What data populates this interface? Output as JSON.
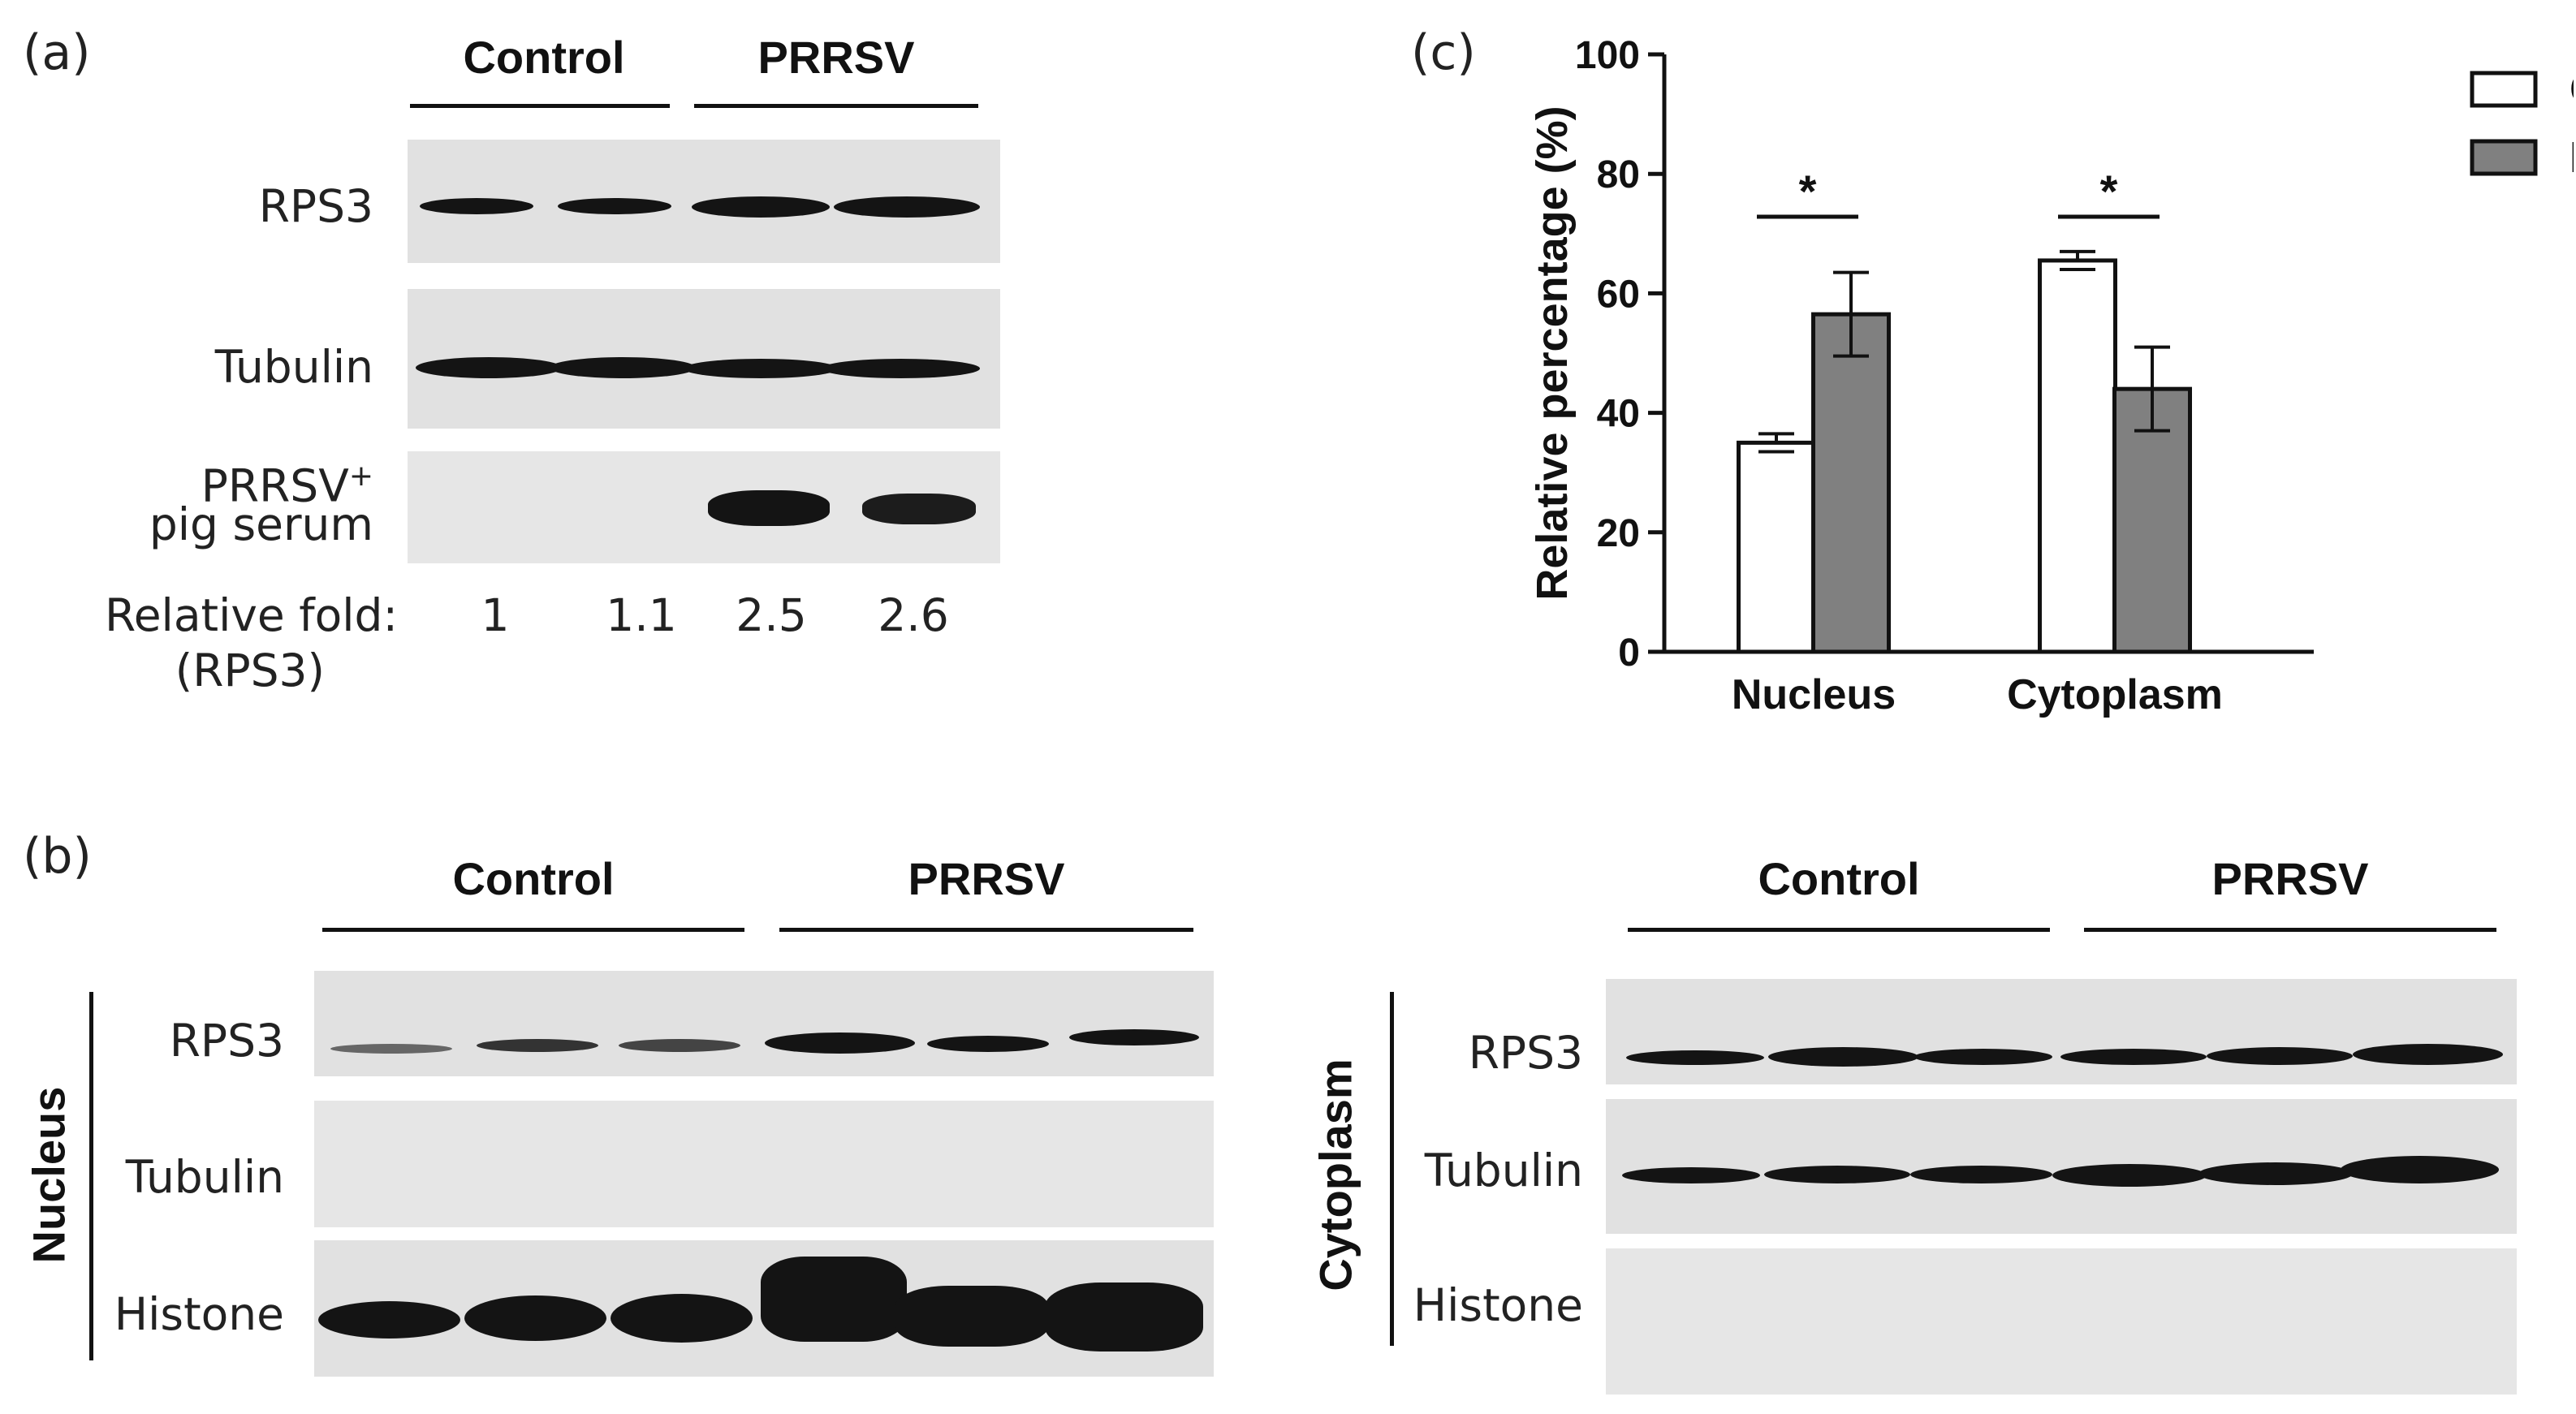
{
  "panel_a": {
    "label": "(a)",
    "group_headers": [
      "Control",
      "PRRSV"
    ],
    "rows": [
      "RPS3",
      "Tubulin",
      "PRRSV+ pig serum"
    ],
    "row_label_serum_line1": "PRRSV",
    "row_label_serum_sup": "+",
    "row_label_serum_line2": "pig serum",
    "relative_fold_label": "Relative fold:",
    "relative_fold_sublabel": "(RPS3)",
    "relative_fold_values": [
      "1",
      "1.1",
      "2.5",
      "2.6"
    ]
  },
  "panel_b": {
    "label": "(b)",
    "nucleus": {
      "side_label": "Nucleus",
      "group_headers": [
        "Control",
        "PRRSV"
      ],
      "rows": [
        "RPS3",
        "Tubulin",
        "Histone"
      ]
    },
    "cytoplasm": {
      "side_label": "Cytoplasm",
      "group_headers": [
        "Control",
        "PRRSV"
      ],
      "rows": [
        "RPS3",
        "Tubulin",
        "Histone"
      ]
    }
  },
  "panel_c": {
    "label": "(c)",
    "significance_marker": "*"
  },
  "chart_data": {
    "type": "bar",
    "categories": [
      "Nucleus",
      "Cytoplasm"
    ],
    "series": [
      {
        "name": "Control",
        "values": [
          35,
          65.5
        ],
        "errors": [
          1.5,
          1.5
        ],
        "color": "#ffffff"
      },
      {
        "name": "PRRSV",
        "values": [
          56.5,
          44
        ],
        "errors": [
          7,
          7
        ],
        "color": "#808080"
      }
    ],
    "ylabel": "Relative percentage (%)",
    "xlabel": "",
    "ylim": [
      0,
      100
    ],
    "yticks": [
      "0",
      "20",
      "40",
      "60",
      "80",
      "100"
    ],
    "legend_position": "top-right",
    "significance": [
      "*",
      "*"
    ],
    "grid": false
  }
}
